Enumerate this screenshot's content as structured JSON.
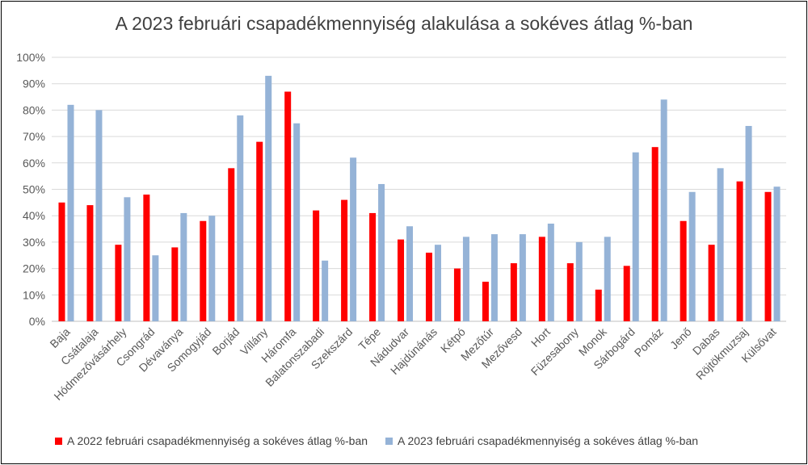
{
  "chart_data": {
    "type": "bar",
    "title": "A 2023 februári csapadékmennyiség alakulása a sokéves átlag %-ban",
    "categories": [
      "Baja",
      "Csátalaja",
      "Hódmezővásárhely",
      "Csongrád",
      "Dévaványa",
      "Somogyjád",
      "Borjád",
      "Villány",
      "Háromfa",
      "Balatonszabadi",
      "Szekszárd",
      "Tépe",
      "Nádudvar",
      "Hajdúnánás",
      "Kétpó",
      "Mezőtúr",
      "Mezővesd",
      "Hort",
      "Füzesabony",
      "Monok",
      "Sárbogárd",
      "Pomáz",
      "Jenő",
      "Dabas",
      "Röjtökmuzsaj",
      "Külsővat"
    ],
    "series": [
      {
        "name": "A 2022 februári csapadékmennyiség a sokéves átlag %-ban",
        "color": "#ff0000",
        "values": [
          45,
          44,
          29,
          48,
          28,
          38,
          58,
          68,
          87,
          42,
          46,
          41,
          31,
          26,
          20,
          15,
          22,
          32,
          22,
          12,
          21,
          66,
          38,
          29,
          53,
          49
        ]
      },
      {
        "name": "A 2023 februári csapadékmennyiség a sokéves átlag %-ban",
        "color": "#95b3d7",
        "values": [
          82,
          80,
          47,
          25,
          41,
          40,
          78,
          93,
          75,
          23,
          62,
          52,
          36,
          29,
          32,
          33,
          33,
          37,
          30,
          32,
          64,
          84,
          49,
          58,
          74,
          51
        ]
      }
    ],
    "ylim": [
      0,
      100
    ],
    "yticks": [
      "0%",
      "10%",
      "20%",
      "30%",
      "40%",
      "50%",
      "60%",
      "70%",
      "80%",
      "90%",
      "100%"
    ],
    "grid": true,
    "legend_position": "bottom"
  }
}
